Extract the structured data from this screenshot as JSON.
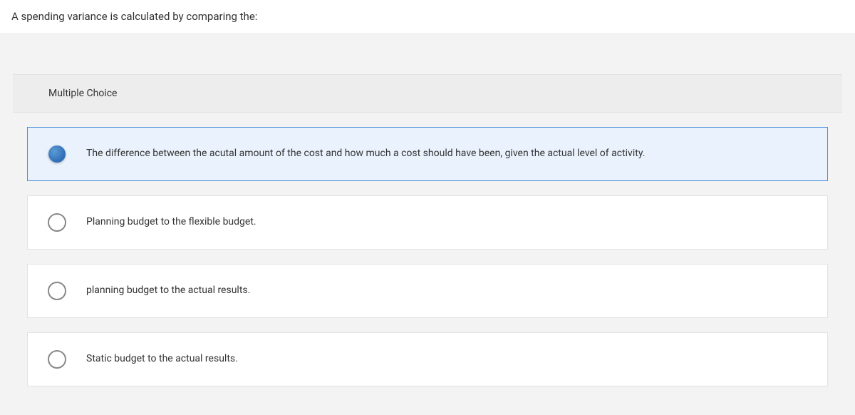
{
  "question": {
    "text": "A spending variance is calculated by comparing the:"
  },
  "section_label": "Multiple Choice",
  "options": [
    {
      "text": "The difference between the acutal amount of the cost and how much a cost should have been, given the actual level of activity.",
      "selected": true
    },
    {
      "text": "Planning budget to the flexible budget.",
      "selected": false
    },
    {
      "text": "planning budget to the actual results.",
      "selected": false
    },
    {
      "text": "Static budget to the actual results.",
      "selected": false
    }
  ],
  "colors": {
    "page_bg": "#f3f3f3",
    "option_bg": "#ffffff",
    "selected_bg": "#eaf3fd",
    "selected_border": "#4a90d9",
    "default_border": "#e2e2e2",
    "text": "#333333",
    "radio_border": "#888888"
  }
}
